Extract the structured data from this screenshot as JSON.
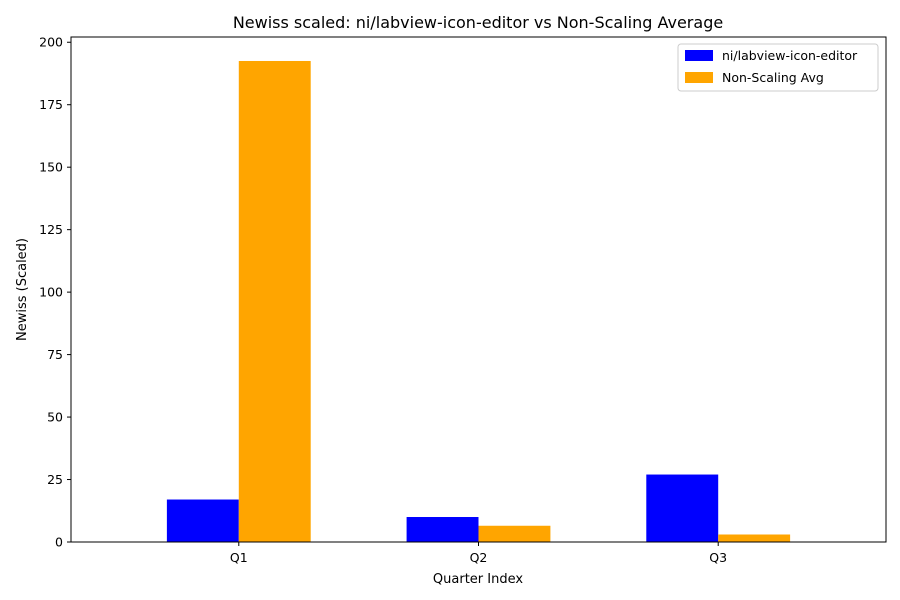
{
  "chart_data": {
    "type": "bar",
    "title": "Newiss scaled: ni/labview-icon-editor vs Non-Scaling Average",
    "xlabel": "Quarter Index",
    "ylabel": "Newiss (Scaled)",
    "categories": [
      "Q1",
      "Q2",
      "Q3"
    ],
    "series": [
      {
        "name": "ni/labview-icon-editor",
        "color": "#0000ff",
        "values": [
          17,
          10,
          27
        ]
      },
      {
        "name": "Non-Scaling Avg",
        "color": "#ffa500",
        "values": [
          192.5,
          6.5,
          3
        ]
      }
    ],
    "ylim": [
      0,
      202.1
    ],
    "yticks": [
      0,
      25,
      50,
      75,
      100,
      125,
      150,
      175,
      200
    ],
    "ytick_labels": [
      "0",
      "25",
      "50",
      "75",
      "100",
      "125",
      "150",
      "175",
      "200"
    ],
    "grid": false,
    "legend_position": "top-right"
  }
}
